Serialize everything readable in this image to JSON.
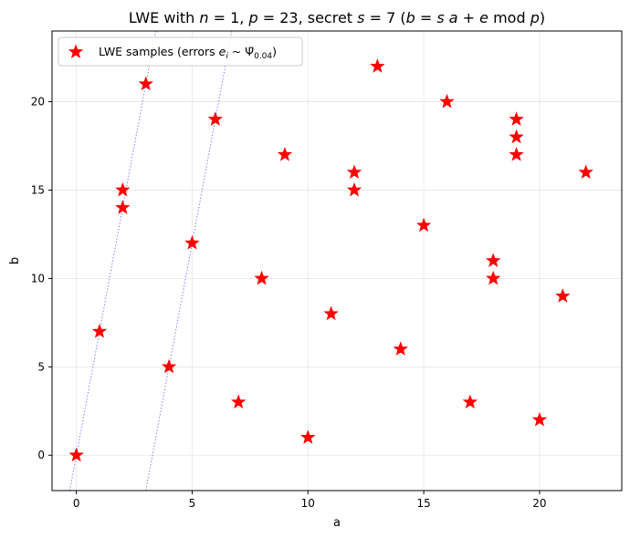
{
  "chart_data": {
    "type": "scatter",
    "title_parts": {
      "t1": "LWE with ",
      "t2": "n",
      "t3": " = 1, ",
      "t4": "p",
      "t5": " = 23, secret ",
      "t6": "s",
      "t7": " = 7  (",
      "t8": "b",
      "t9": " = ",
      "t10": "s a",
      "t11": " + ",
      "t12": "e",
      "t13": " mod ",
      "t14": "p",
      "t15": ")"
    },
    "xlabel": "a",
    "ylabel": "b",
    "xlim": [
      -1.05,
      23.55
    ],
    "ylim": [
      -2,
      24
    ],
    "xticks": [
      0,
      5,
      10,
      15,
      20
    ],
    "yticks": [
      0,
      5,
      10,
      15,
      20
    ],
    "grid": true,
    "legend": {
      "placement": "top-left",
      "label_parts": {
        "l1": "LWE samples (errors ",
        "l2": "e",
        "l3": "i",
        "l4": " ~ ",
        "l5": "Ψ̄",
        "l6": "0.04",
        "l7": ")"
      }
    },
    "series": [
      {
        "name": "LWE samples (errors e_i ~ Ψ̄_0.04)",
        "marker": "star",
        "color": "#ff0000",
        "points": [
          [
            0,
            0
          ],
          [
            1,
            7
          ],
          [
            2,
            14
          ],
          [
            2,
            15
          ],
          [
            3,
            21
          ],
          [
            4,
            5
          ],
          [
            5,
            12
          ],
          [
            6,
            19
          ],
          [
            7,
            3
          ],
          [
            8,
            10
          ],
          [
            9,
            17
          ],
          [
            10,
            1
          ],
          [
            11,
            8
          ],
          [
            12,
            15
          ],
          [
            12,
            16
          ],
          [
            13,
            22
          ],
          [
            14,
            6
          ],
          [
            15,
            13
          ],
          [
            16,
            20
          ],
          [
            17,
            3
          ],
          [
            18,
            10
          ],
          [
            18,
            11
          ],
          [
            19,
            17
          ],
          [
            19,
            18
          ],
          [
            19,
            19
          ],
          [
            20,
            2
          ],
          [
            21,
            9
          ],
          [
            22,
            16
          ]
        ]
      }
    ],
    "reference_lines": [
      {
        "style": "dotted",
        "color": "#8080ff",
        "slope": 7,
        "intercept": 0
      },
      {
        "style": "dotted",
        "color": "#8080ff",
        "slope": 7,
        "intercept": -23
      }
    ]
  }
}
